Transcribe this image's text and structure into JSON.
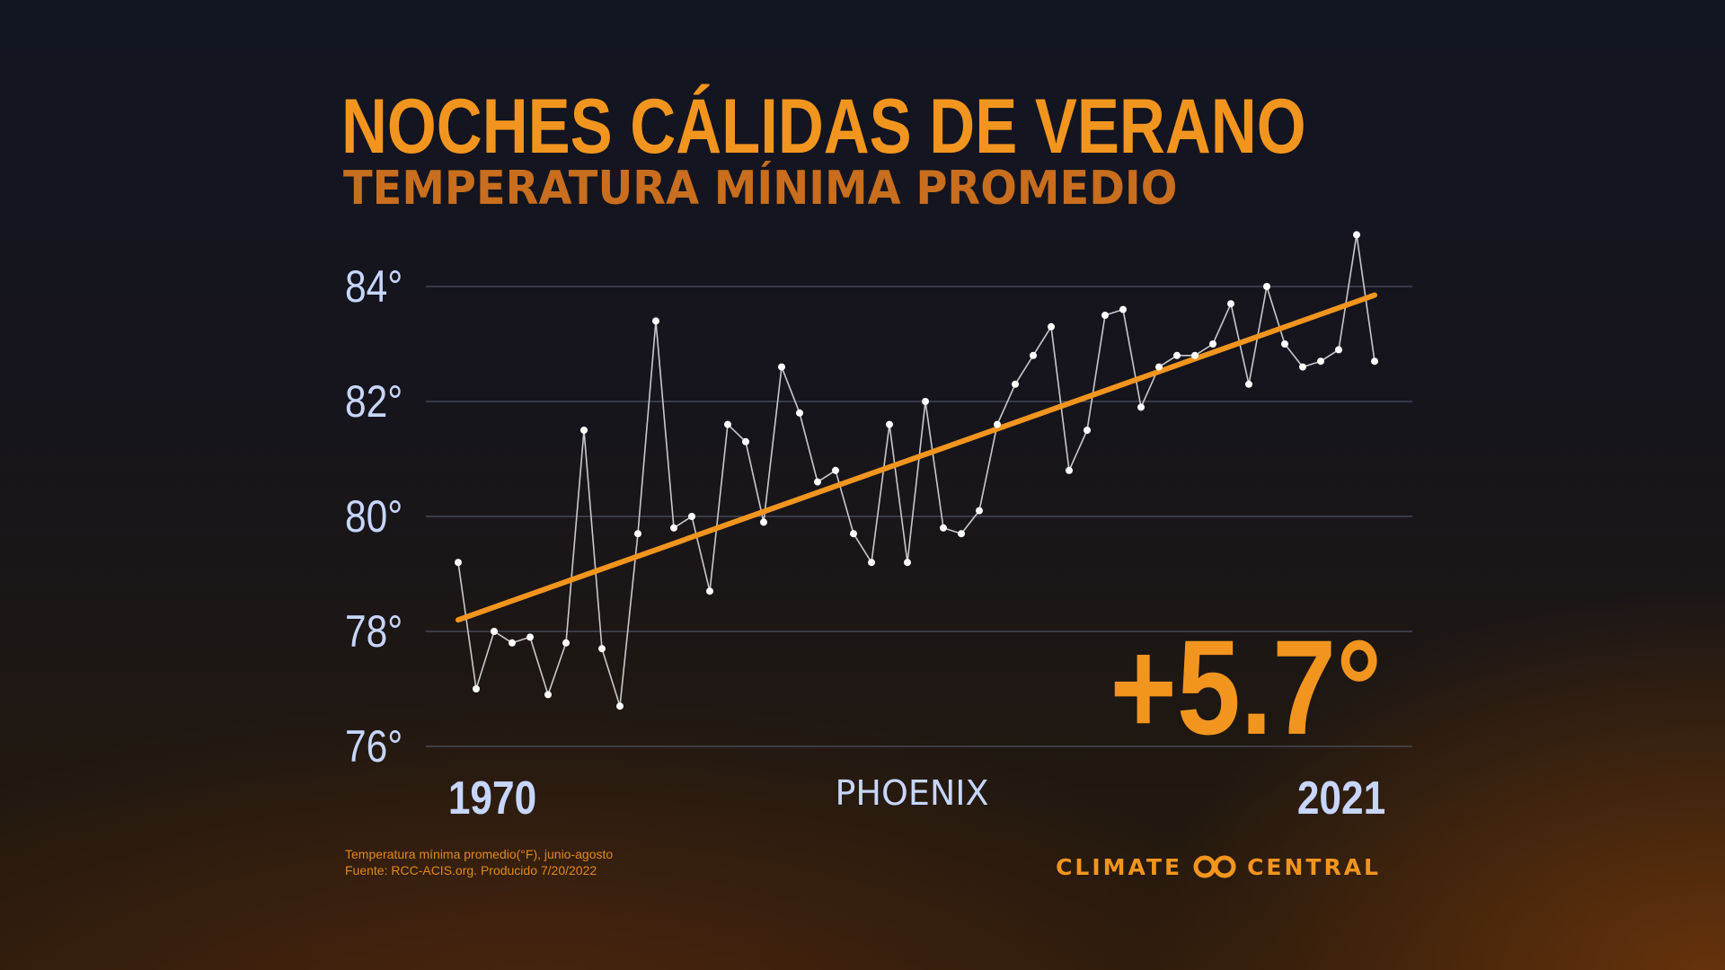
{
  "title": "NOCHES CÁLIDAS DE VERANO",
  "subtitle": "TEMPERATURA MÍNIMA PROMEDIO",
  "city": "PHOENIX",
  "change_label": "+5.7°",
  "footnote": {
    "line1": "Temperatura mínima promedio(°F), junio-agosto",
    "line2": "Fuente: RCC-ACIS.org. Producido  7/20/2022"
  },
  "brand": {
    "left_word": "CLIMATE",
    "right_word": "CENTRAL",
    "logo_icon": "double-ring-logo-icon"
  },
  "colors": {
    "accent": "#f2951f",
    "axis_text": "#c7d6ff",
    "series_line": "#c9c9cc",
    "points": "#ffffff",
    "grid": "#5a6075"
  },
  "chart_data": {
    "type": "line",
    "x": [
      1970,
      1971,
      1972,
      1973,
      1974,
      1975,
      1976,
      1977,
      1978,
      1979,
      1980,
      1981,
      1982,
      1983,
      1984,
      1985,
      1986,
      1987,
      1988,
      1989,
      1990,
      1991,
      1992,
      1993,
      1994,
      1995,
      1996,
      1997,
      1998,
      1999,
      2000,
      2001,
      2002,
      2003,
      2004,
      2005,
      2006,
      2007,
      2008,
      2009,
      2010,
      2011,
      2012,
      2013,
      2014,
      2015,
      2016,
      2017,
      2018,
      2019,
      2020,
      2021
    ],
    "series": [
      {
        "values": [
          79.2,
          77.0,
          78.0,
          77.8,
          77.9,
          76.9,
          77.8,
          81.5,
          77.7,
          76.7,
          79.7,
          83.4,
          79.8,
          80.0,
          78.7,
          81.6,
          81.3,
          79.9,
          82.6,
          81.8,
          80.6,
          80.8,
          79.7,
          79.2,
          81.6,
          79.2,
          82.0,
          79.8,
          79.7,
          80.1,
          81.6,
          82.3,
          82.8,
          83.3,
          80.8,
          81.5,
          83.5,
          83.6,
          81.9,
          82.6,
          82.8,
          82.8,
          83.0,
          83.7,
          82.3,
          84.0,
          83.0,
          82.6,
          82.7,
          82.9,
          84.9,
          82.7
        ]
      }
    ],
    "trend": {
      "start": [
        1970,
        78.2
      ],
      "end": [
        2021,
        83.85
      ]
    },
    "x_tick_labels": [
      "1970",
      "2021"
    ],
    "y_ticks": [
      76,
      78,
      80,
      82,
      84
    ],
    "y_tick_labels": [
      "76°",
      "78°",
      "80°",
      "82°",
      "84°"
    ],
    "ylim": [
      76,
      84
    ],
    "xlim": [
      1970,
      2021
    ],
    "grid": true,
    "xlabel": "",
    "ylabel": ""
  }
}
